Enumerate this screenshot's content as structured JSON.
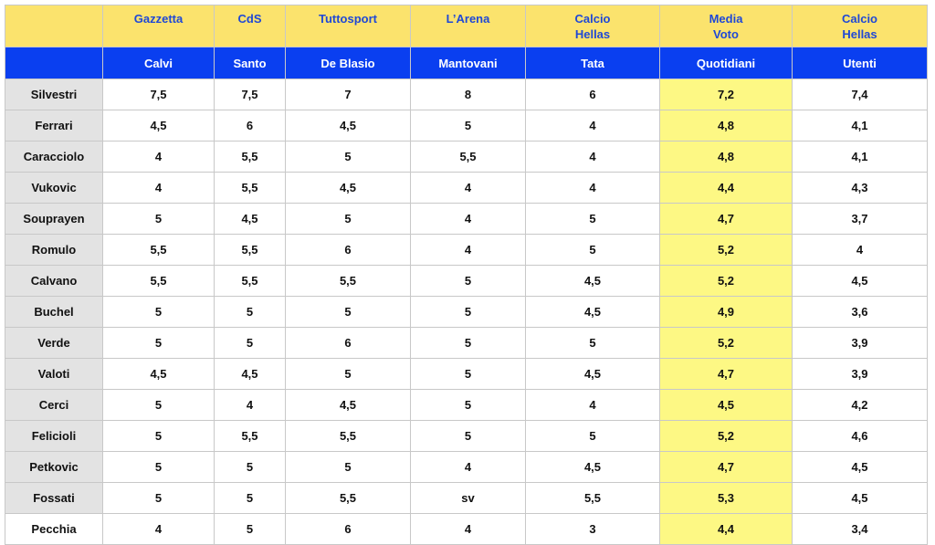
{
  "table": {
    "header_top": [
      [],
      [
        "Gazzetta"
      ],
      [
        "CdS"
      ],
      [
        "Tuttosport"
      ],
      [
        "L’Arena"
      ],
      [
        "Calcio",
        "Hellas"
      ],
      [
        "Media",
        "Voto"
      ],
      [
        "Calcio",
        "Hellas"
      ]
    ],
    "header_bottom": [
      "",
      "Calvi",
      "Santo",
      "De Blasio",
      "Mantovani",
      "Tata",
      "Quotidiani",
      "Utenti"
    ],
    "rows": [
      [
        "Silvestri",
        "7,5",
        "7,5",
        "7",
        "8",
        "6",
        "7,2",
        "7,4"
      ],
      [
        "Ferrari",
        "4,5",
        "6",
        "4,5",
        "5",
        "4",
        "4,8",
        "4,1"
      ],
      [
        "Caracciolo",
        "4",
        "5,5",
        "5",
        "5,5",
        "4",
        "4,8",
        "4,1"
      ],
      [
        "Vukovic",
        "4",
        "5,5",
        "4,5",
        "4",
        "4",
        "4,4",
        "4,3"
      ],
      [
        "Souprayen",
        "5",
        "4,5",
        "5",
        "4",
        "5",
        "4,7",
        "3,7"
      ],
      [
        "Romulo",
        "5,5",
        "5,5",
        "6",
        "4",
        "5",
        "5,2",
        "4"
      ],
      [
        "Calvano",
        "5,5",
        "5,5",
        "5,5",
        "5",
        "4,5",
        "5,2",
        "4,5"
      ],
      [
        "Buchel",
        "5",
        "5",
        "5",
        "5",
        "4,5",
        "4,9",
        "3,6"
      ],
      [
        "Verde",
        "5",
        "5",
        "6",
        "5",
        "5",
        "5,2",
        "3,9"
      ],
      [
        "Valoti",
        "4,5",
        "4,5",
        "5",
        "5",
        "4,5",
        "4,7",
        "3,9"
      ],
      [
        "Cerci",
        "5",
        "4",
        "4,5",
        "5",
        "4",
        "4,5",
        "4,2"
      ],
      [
        "Felicioli",
        "5",
        "5,5",
        "5,5",
        "5",
        "5",
        "5,2",
        "4,6"
      ],
      [
        "Petkovic",
        "5",
        "5",
        "5",
        "4",
        "4,5",
        "4,7",
        "4,5"
      ],
      [
        "Fossati",
        "5",
        "5",
        "5,5",
        "sv",
        "5,5",
        "5,3",
        "4,5"
      ],
      [
        "Pecchia",
        "4",
        "5",
        "6",
        "4",
        "3",
        "4,4",
        "3,4"
      ]
    ]
  }
}
